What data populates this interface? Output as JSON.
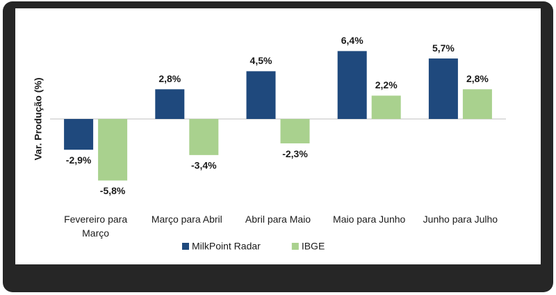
{
  "chart_data": {
    "type": "bar",
    "y_label": "Var. Produção (%)",
    "categories": [
      "Fevereiro para Março",
      "Março para Abril",
      "Abril para Maio",
      "Maio para Junho",
      "Junho para Julho"
    ],
    "series": [
      {
        "name": "MilkPoint Radar",
        "color": "#1f497d",
        "values": [
          -2.9,
          2.8,
          4.5,
          6.4,
          5.7
        ],
        "value_labels": [
          "-2,9%",
          "2,8%",
          "4,5%",
          "6,4%",
          "5,7%"
        ]
      },
      {
        "name": "IBGE",
        "color": "#a9d18e",
        "values": [
          -5.8,
          -3.4,
          -2.3,
          2.2,
          2.8
        ],
        "value_labels": [
          "-5,8%",
          "-3,4%",
          "-2,3%",
          "2,2%",
          "2,8%"
        ]
      }
    ],
    "ylim": [
      -8,
      8
    ],
    "legend": "bottom"
  }
}
